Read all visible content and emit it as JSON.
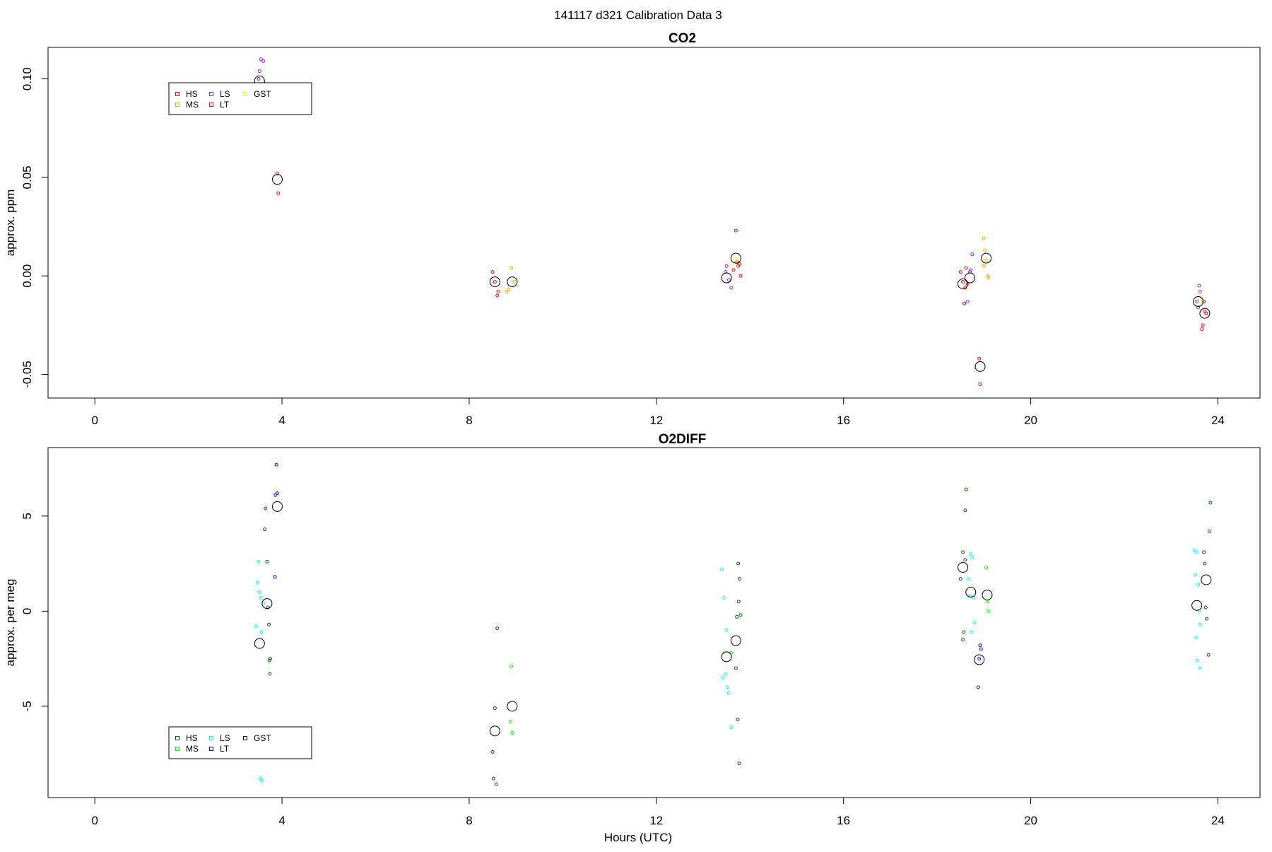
{
  "figure": {
    "title": "141117   d321   Calibration Data 3",
    "xlabel": "Hours (UTC)"
  },
  "chart_data": [
    {
      "type": "scatter",
      "title": "CO2",
      "xlabel": "",
      "ylabel": "approx. ppm",
      "xlim": [
        -1,
        24.9
      ],
      "ylim": [
        -0.062,
        0.116
      ],
      "xticks": [
        0,
        4,
        8,
        12,
        16,
        20,
        24
      ],
      "yticks": [
        -0.05,
        0,
        0.05,
        0.1
      ],
      "ytick_labels": [
        "-0.05",
        "0.00",
        "0.05",
        "0.10"
      ],
      "grid": false,
      "legend": {
        "placement": "top-left",
        "entries": [
          {
            "label": "HS",
            "color": "#ff0000"
          },
          {
            "label": "MS",
            "color": "#ffa500"
          },
          {
            "label": "LS",
            "color": "#a020f0"
          },
          {
            "label": "LT",
            "color": "#ff0000"
          },
          {
            "label": "GST",
            "color": "#ffff00"
          }
        ]
      },
      "series": [
        {
          "name": "HS",
          "color": "#ff0000",
          "points": [
            [
              8.5,
              0.002
            ],
            [
              8.55,
              -0.003
            ],
            [
              8.6,
              -0.01
            ],
            [
              8.62,
              -0.008
            ],
            [
              13.7,
              0.023
            ],
            [
              13.72,
              0.007
            ],
            [
              13.75,
              0.005
            ],
            [
              13.78,
              0.006
            ],
            [
              13.8,
              0.0
            ],
            [
              13.65,
              0.003
            ],
            [
              18.5,
              0.002
            ],
            [
              18.55,
              -0.003
            ],
            [
              18.6,
              -0.006
            ],
            [
              18.62,
              0.004
            ],
            [
              18.58,
              -0.014
            ],
            [
              18.65,
              -0.004
            ],
            [
              23.7,
              -0.013
            ],
            [
              23.72,
              -0.018
            ],
            [
              23.68,
              -0.025
            ],
            [
              23.66,
              -0.027
            ],
            [
              23.75,
              -0.019
            ]
          ]
        },
        {
          "name": "MS",
          "color": "#ffa500",
          "points": [
            [
              8.9,
              0.004
            ],
            [
              8.85,
              -0.007
            ],
            [
              8.8,
              -0.008
            ],
            [
              8.95,
              -0.003
            ],
            [
              19.0,
              0.019
            ],
            [
              19.02,
              0.013
            ],
            [
              19.05,
              0.008
            ],
            [
              19.1,
              -0.001
            ],
            [
              19.08,
              0.0
            ],
            [
              19.0,
              0.005
            ]
          ]
        },
        {
          "name": "LS",
          "color": "#a020f0",
          "points": [
            [
              3.55,
              0.11
            ],
            [
              3.6,
              0.109
            ],
            [
              3.52,
              0.104
            ],
            [
              3.5,
              0.1
            ],
            [
              13.5,
              0.005
            ],
            [
              13.55,
              -0.002
            ],
            [
              13.6,
              -0.006
            ],
            [
              13.48,
              0.002
            ],
            [
              18.7,
              0.002
            ],
            [
              18.75,
              0.011
            ],
            [
              18.65,
              -0.013
            ],
            [
              18.72,
              0.003
            ],
            [
              23.6,
              -0.005
            ],
            [
              23.62,
              -0.008
            ],
            [
              23.55,
              -0.013
            ],
            [
              23.58,
              -0.016
            ]
          ]
        },
        {
          "name": "LT",
          "color": "#ff0000",
          "points": [
            [
              3.9,
              0.052
            ],
            [
              3.92,
              0.042
            ],
            [
              18.9,
              -0.042
            ],
            [
              18.92,
              -0.055
            ]
          ]
        },
        {
          "name": "GST",
          "color": "#ffff00",
          "points": [
            [
              13.7,
              0.008
            ],
            [
              23.65,
              -0.012
            ]
          ]
        },
        {
          "name": "",
          "color": "#000000",
          "mean": true,
          "points": [
            [
              3.52,
              0.099
            ],
            [
              3.9,
              0.049
            ],
            [
              8.55,
              -0.003
            ],
            [
              8.92,
              -0.003
            ],
            [
              13.5,
              -0.001
            ],
            [
              13.7,
              0.009
            ],
            [
              18.55,
              -0.004
            ],
            [
              18.7,
              -0.001
            ],
            [
              18.92,
              -0.046
            ],
            [
              19.05,
              0.009
            ],
            [
              23.58,
              -0.013
            ],
            [
              23.72,
              -0.019
            ]
          ]
        }
      ]
    },
    {
      "type": "scatter",
      "title": "O2DIFF",
      "xlabel": "Hours (UTC)",
      "ylabel": "approx. per meg",
      "xlim": [
        -1,
        24.9
      ],
      "ylim": [
        -9.8,
        8.6
      ],
      "xticks": [
        0,
        4,
        8,
        12,
        16,
        20,
        24
      ],
      "yticks": [
        -5,
        0,
        5
      ],
      "ytick_labels": [
        "-5",
        "0",
        "5"
      ],
      "grid": false,
      "legend": {
        "placement": "bottom-left",
        "entries": [
          {
            "label": "HS",
            "color": "#006400"
          },
          {
            "label": "MS",
            "color": "#00ff00"
          },
          {
            "label": "LS",
            "color": "#00ffff"
          },
          {
            "label": "LT",
            "color": "#0000ff"
          },
          {
            "label": "GST",
            "color": "#00008b"
          }
        ]
      },
      "series": [
        {
          "name": "HS",
          "color": "#006400",
          "points": [
            [
              3.65,
              5.4
            ],
            [
              3.63,
              4.3
            ],
            [
              3.68,
              2.6
            ],
            [
              3.72,
              -0.7
            ],
            [
              3.7,
              0.2
            ],
            [
              3.75,
              -2.5
            ],
            [
              3.73,
              -2.6
            ],
            [
              3.74,
              -3.3
            ],
            [
              8.6,
              -0.9
            ],
            [
              8.55,
              -5.1
            ],
            [
              8.5,
              -7.4
            ],
            [
              8.52,
              -8.8
            ],
            [
              8.58,
              -9.1
            ],
            [
              13.75,
              2.5
            ],
            [
              13.78,
              1.7
            ],
            [
              13.76,
              0.5
            ],
            [
              13.72,
              -0.3
            ],
            [
              13.8,
              -0.2
            ],
            [
              13.7,
              -3.0
            ],
            [
              13.74,
              -5.7
            ],
            [
              13.77,
              -8.0
            ],
            [
              18.55,
              3.1
            ],
            [
              18.6,
              2.7
            ],
            [
              18.5,
              1.7
            ],
            [
              18.57,
              -1.1
            ],
            [
              18.55,
              -1.5
            ],
            [
              18.62,
              6.4
            ],
            [
              18.6,
              5.3
            ],
            [
              23.7,
              3.1
            ],
            [
              23.72,
              2.5
            ],
            [
              23.74,
              0.2
            ],
            [
              23.76,
              -0.4
            ],
            [
              23.8,
              -2.3
            ],
            [
              23.82,
              4.2
            ],
            [
              23.84,
              5.7
            ]
          ]
        },
        {
          "name": "MS",
          "color": "#00ff00",
          "points": [
            [
              8.9,
              -2.9
            ],
            [
              8.88,
              -5.8
            ],
            [
              8.92,
              -6.4
            ],
            [
              13.6,
              -2.2
            ],
            [
              19.05,
              2.3
            ],
            [
              19.08,
              0.5
            ],
            [
              19.1,
              0.0
            ]
          ]
        },
        {
          "name": "LS",
          "color": "#00ffff",
          "points": [
            [
              3.5,
              2.6
            ],
            [
              3.48,
              1.5
            ],
            [
              3.52,
              1.0
            ],
            [
              3.55,
              0.7
            ],
            [
              3.6,
              0.4
            ],
            [
              3.45,
              -0.8
            ],
            [
              3.56,
              -1.1
            ],
            [
              3.54,
              -8.8
            ],
            [
              3.57,
              -8.9
            ],
            [
              13.4,
              2.2
            ],
            [
              13.45,
              0.7
            ],
            [
              13.5,
              -1.0
            ],
            [
              13.42,
              -3.5
            ],
            [
              13.48,
              -3.3
            ],
            [
              13.52,
              -4.0
            ],
            [
              13.55,
              -4.3
            ],
            [
              13.6,
              -6.1
            ],
            [
              18.72,
              3.0
            ],
            [
              18.75,
              2.8
            ],
            [
              18.68,
              1.7
            ],
            [
              18.7,
              0.8
            ],
            [
              18.78,
              0.7
            ],
            [
              18.8,
              -0.6
            ],
            [
              18.74,
              -1.1
            ],
            [
              23.5,
              3.2
            ],
            [
              23.55,
              3.1
            ],
            [
              23.52,
              1.9
            ],
            [
              23.58,
              1.4
            ],
            [
              23.6,
              0.0
            ],
            [
              23.62,
              -0.7
            ],
            [
              23.54,
              -1.4
            ],
            [
              23.56,
              -2.6
            ],
            [
              23.62,
              -3.0
            ]
          ]
        },
        {
          "name": "LT",
          "color": "#0000ff",
          "points": [
            [
              3.88,
              7.7
            ],
            [
              3.9,
              6.2
            ],
            [
              3.86,
              6.1
            ],
            [
              3.85,
              1.8
            ],
            [
              18.92,
              -1.8
            ],
            [
              18.94,
              -2.0
            ],
            [
              18.9,
              -2.5
            ],
            [
              18.88,
              -4.0
            ]
          ]
        },
        {
          "name": "",
          "color": "#000000",
          "mean": true,
          "points": [
            [
              3.52,
              -1.7
            ],
            [
              3.68,
              0.4
            ],
            [
              3.9,
              5.5
            ],
            [
              8.55,
              -6.3
            ],
            [
              8.92,
              -5.0
            ],
            [
              13.5,
              -2.4
            ],
            [
              13.7,
              -1.55
            ],
            [
              18.55,
              2.3
            ],
            [
              18.72,
              1.0
            ],
            [
              18.9,
              -2.55
            ],
            [
              19.07,
              0.85
            ],
            [
              23.55,
              0.3
            ],
            [
              23.75,
              1.65
            ]
          ]
        }
      ]
    }
  ]
}
